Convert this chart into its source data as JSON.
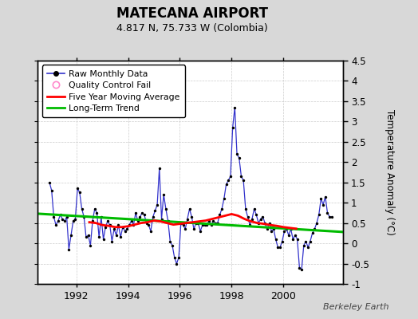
{
  "title": "MATECANA AIRPORT",
  "subtitle": "4.817 N, 75.733 W (Colombia)",
  "ylabel": "Temperature Anomaly (°C)",
  "watermark": "Berkeley Earth",
  "ylim": [
    -1.0,
    4.5
  ],
  "yticks": [
    -1.0,
    -0.5,
    0.0,
    0.5,
    1.0,
    1.5,
    2.0,
    2.5,
    3.0,
    3.5,
    4.0,
    4.5
  ],
  "ytick_labels": [
    "-1",
    "-0.5",
    "0",
    "0.5",
    "1",
    "1.5",
    "2",
    "2.5",
    "3",
    "3.5",
    "4",
    "4.5"
  ],
  "xlim_start": 1990.5,
  "xlim_end": 2002.3,
  "xticks": [
    1992,
    1994,
    1996,
    1998,
    2000
  ],
  "bg_color": "#d8d8d8",
  "plot_bg_color": "#ffffff",
  "raw_color": "#3333cc",
  "raw_dot_color": "#000000",
  "moving_avg_color": "#ff0000",
  "trend_color": "#00bb00",
  "qc_color": "#ff88cc",
  "legend": {
    "raw": "Raw Monthly Data",
    "qc": "Quality Control Fail",
    "moving_avg": "Five Year Moving Average",
    "trend": "Long-Term Trend"
  },
  "raw_x": [
    1990.958,
    1991.042,
    1991.125,
    1991.208,
    1991.292,
    1991.375,
    1991.458,
    1991.542,
    1991.625,
    1991.708,
    1991.792,
    1991.875,
    1991.958,
    1992.042,
    1992.125,
    1992.208,
    1992.292,
    1992.375,
    1992.458,
    1992.542,
    1992.625,
    1992.708,
    1992.792,
    1992.875,
    1992.958,
    1993.042,
    1993.125,
    1993.208,
    1993.292,
    1993.375,
    1993.458,
    1993.542,
    1993.625,
    1993.708,
    1993.792,
    1993.875,
    1993.958,
    1994.042,
    1994.125,
    1994.208,
    1994.292,
    1994.375,
    1994.458,
    1994.542,
    1994.625,
    1994.708,
    1994.792,
    1994.875,
    1994.958,
    1995.042,
    1995.125,
    1995.208,
    1995.292,
    1995.375,
    1995.458,
    1995.542,
    1995.625,
    1995.708,
    1995.792,
    1995.875,
    1995.958,
    1996.042,
    1996.125,
    1996.208,
    1996.292,
    1996.375,
    1996.458,
    1996.542,
    1996.625,
    1996.708,
    1996.792,
    1996.875,
    1996.958,
    1997.042,
    1997.125,
    1997.208,
    1997.292,
    1997.375,
    1997.458,
    1997.542,
    1997.625,
    1997.708,
    1997.792,
    1997.875,
    1997.958,
    1998.042,
    1998.125,
    1998.208,
    1998.292,
    1998.375,
    1998.458,
    1998.542,
    1998.625,
    1998.708,
    1998.792,
    1998.875,
    1998.958,
    1999.042,
    1999.125,
    1999.208,
    1999.292,
    1999.375,
    1999.458,
    1999.542,
    1999.625,
    1999.708,
    1999.792,
    1999.875,
    1999.958,
    2000.042,
    2000.125,
    2000.208,
    2000.292,
    2000.375,
    2000.458,
    2000.542,
    2000.625,
    2000.708,
    2000.792,
    2000.875,
    2000.958,
    2001.042,
    2001.125,
    2001.208,
    2001.292,
    2001.375,
    2001.458,
    2001.542,
    2001.625,
    2001.708,
    2001.792,
    2001.875
  ],
  "raw_y": [
    1.5,
    1.3,
    0.65,
    0.45,
    0.55,
    0.7,
    0.6,
    0.55,
    0.65,
    -0.15,
    0.2,
    0.55,
    0.6,
    1.35,
    1.25,
    0.85,
    0.65,
    0.15,
    0.2,
    -0.05,
    0.55,
    0.85,
    0.75,
    0.15,
    0.65,
    0.1,
    0.4,
    0.55,
    0.45,
    0.05,
    0.35,
    0.2,
    0.45,
    0.15,
    0.4,
    0.3,
    0.35,
    0.45,
    0.55,
    0.45,
    0.75,
    0.55,
    0.65,
    0.75,
    0.7,
    0.5,
    0.45,
    0.3,
    0.65,
    0.8,
    0.95,
    1.85,
    0.6,
    1.2,
    0.85,
    0.55,
    0.05,
    -0.05,
    -0.35,
    -0.5,
    -0.35,
    0.5,
    0.45,
    0.35,
    0.6,
    0.85,
    0.65,
    0.35,
    0.5,
    0.5,
    0.3,
    0.45,
    0.45,
    0.45,
    0.55,
    0.45,
    0.55,
    0.5,
    0.5,
    0.7,
    0.85,
    1.1,
    1.45,
    1.55,
    1.65,
    2.85,
    3.35,
    2.2,
    2.1,
    1.65,
    1.55,
    0.85,
    0.65,
    0.45,
    0.6,
    0.85,
    0.7,
    0.5,
    0.6,
    0.65,
    0.5,
    0.35,
    0.5,
    0.3,
    0.35,
    0.1,
    -0.1,
    -0.1,
    0.05,
    0.3,
    0.35,
    0.2,
    0.35,
    0.1,
    0.2,
    0.1,
    -0.6,
    -0.65,
    -0.05,
    0.05,
    -0.1,
    0.05,
    0.25,
    0.35,
    0.5,
    0.7,
    1.1,
    0.95,
    1.15,
    0.75,
    0.65,
    0.65
  ],
  "moving_avg_x": [
    1992.5,
    1992.75,
    1993.0,
    1993.25,
    1993.5,
    1993.75,
    1994.0,
    1994.25,
    1994.5,
    1994.75,
    1995.0,
    1995.25,
    1995.5,
    1995.75,
    1996.0,
    1996.25,
    1996.5,
    1996.75,
    1997.0,
    1997.25,
    1997.5,
    1997.75,
    1998.0,
    1998.25,
    1998.5,
    1998.75,
    1999.0,
    1999.25,
    1999.5,
    1999.75,
    2000.0,
    2000.25,
    2000.5
  ],
  "moving_avg_y": [
    0.52,
    0.5,
    0.45,
    0.43,
    0.4,
    0.4,
    0.42,
    0.46,
    0.5,
    0.52,
    0.56,
    0.54,
    0.5,
    0.46,
    0.48,
    0.5,
    0.52,
    0.54,
    0.56,
    0.6,
    0.64,
    0.68,
    0.72,
    0.68,
    0.6,
    0.54,
    0.5,
    0.48,
    0.45,
    0.43,
    0.4,
    0.38,
    0.36
  ],
  "trend_x": [
    1990.5,
    2002.3
  ],
  "trend_y": [
    0.73,
    0.28
  ]
}
